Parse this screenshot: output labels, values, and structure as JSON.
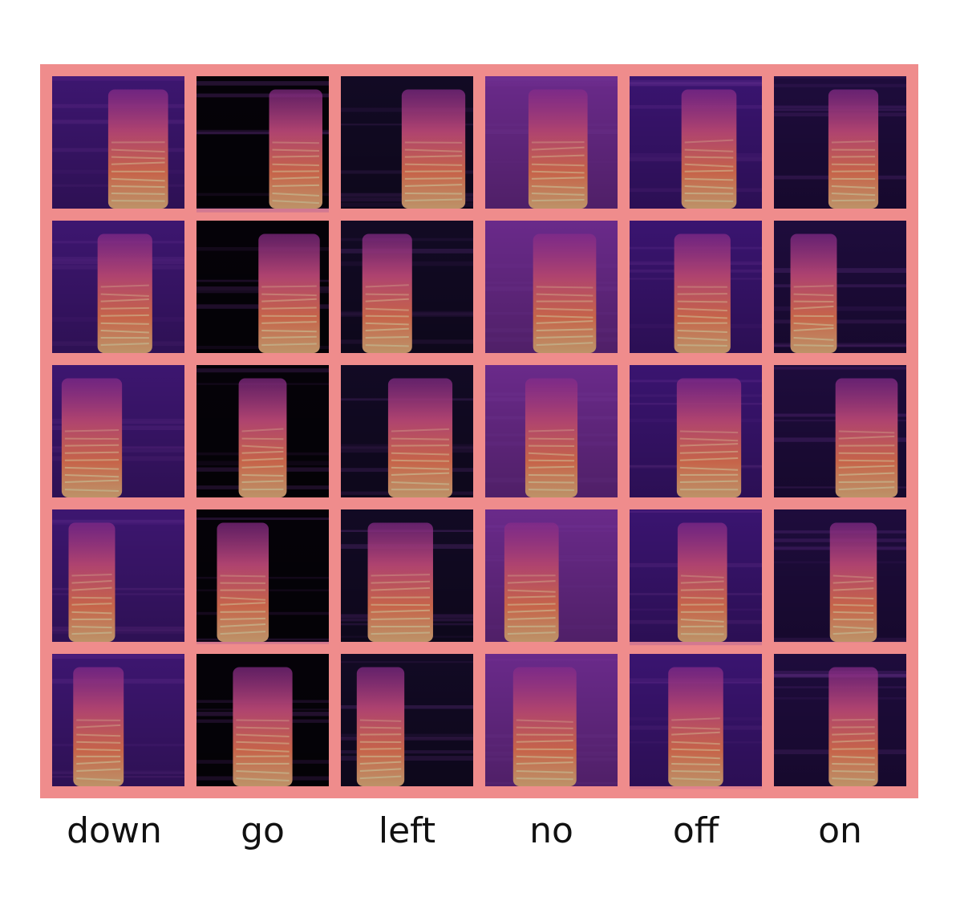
{
  "labels": [
    "down",
    "go",
    "left",
    "no",
    "off",
    "on"
  ]
}
